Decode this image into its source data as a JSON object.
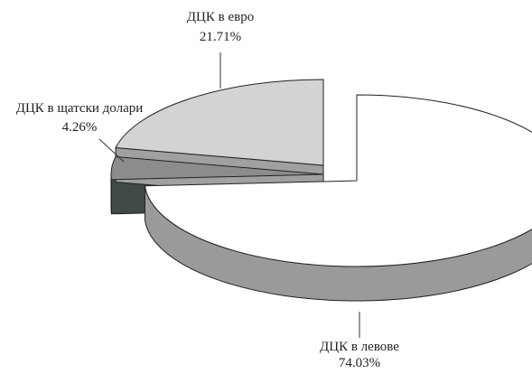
{
  "chart_data": {
    "type": "pie",
    "exploded": true,
    "three_d": true,
    "slices": [
      {
        "label": "ДЦК в левове",
        "value": 74.03,
        "value_label": "74.03%",
        "top_color": "#ffffff",
        "side_color": "#9a9a9a"
      },
      {
        "label": "ДЦК в щатски долари",
        "value": 4.26,
        "value_label": "4.26%",
        "top_color": "#8c8c8c",
        "side_color": "#3f4a48"
      },
      {
        "label": "ДЦК в евро",
        "value": 21.71,
        "value_label": "21.71%",
        "top_color": "#d3d3d3",
        "side_color": "#a0a0a0"
      }
    ]
  }
}
